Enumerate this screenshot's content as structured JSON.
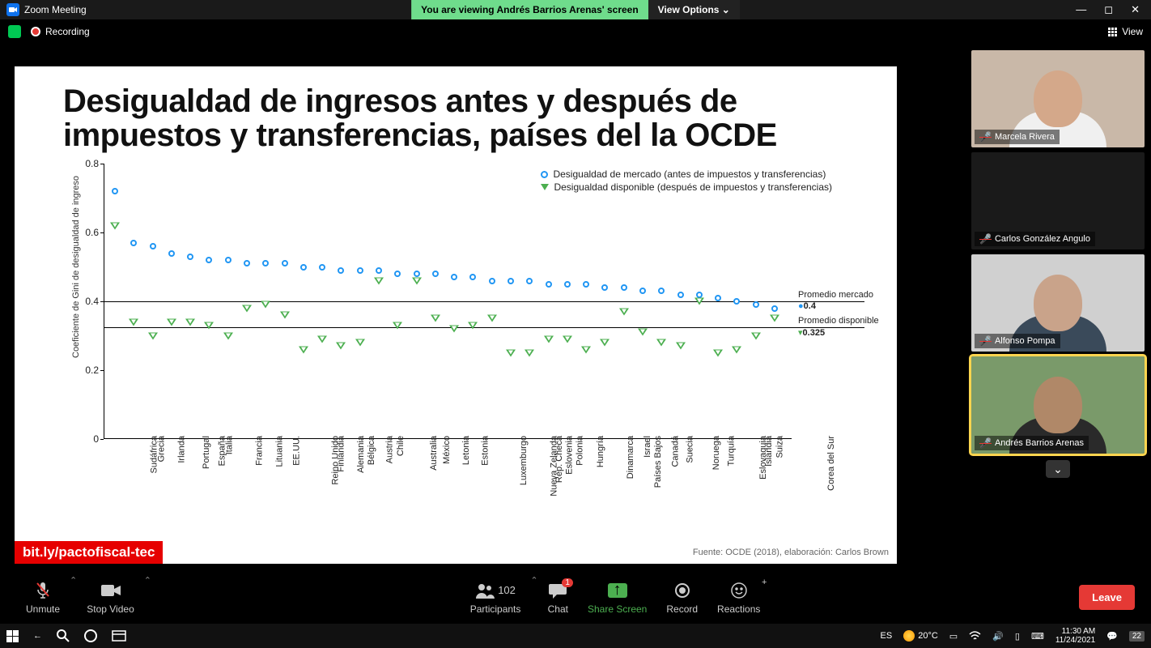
{
  "titlebar": {
    "app": "Zoom Meeting",
    "sharing_msg": "You are viewing Andrés Barrios Arenas' screen",
    "view_options": "View Options ⌄"
  },
  "statusbar": {
    "recording": "Recording",
    "view": "View"
  },
  "slide": {
    "title": "Desigualdad de ingresos antes y después de impuestos y transferencias, países del la OCDE",
    "ylabel": "Coeficiente de Gini de desigualdad de ingreso",
    "source": "Fuente: OCDE (2018), elaboración: Carlos Brown",
    "link": "bit.ly/pactofiscal-tec",
    "legend_market": "Desigualdad de mercado (antes de impuestos y transferencias)",
    "legend_disp": "Desigualdad disponible (después de impuestos y transferencias)",
    "avg_market_label": "Promedio mercado",
    "avg_market_val": "0.4",
    "avg_disp_label": "Promedio disponible",
    "avg_disp_val": "0.325",
    "chart": {
      "type": "scatter",
      "ylim": [
        0,
        0.8
      ],
      "yticks": [
        0,
        0.2,
        0.4,
        0.6,
        0.8
      ],
      "market_color": "#2196f3",
      "disp_color": "#4caf50",
      "avg_market": 0.4,
      "avg_disp": 0.325,
      "categories": [
        "Sudáfrica",
        "Grecia",
        "Irlanda",
        "Portugal",
        "España",
        "Italia",
        "Francia",
        "Lituania",
        "EE.UU.",
        "Reino Unido",
        "Finlandia",
        "Alemania",
        "Bélgica",
        "Austria",
        "Chile",
        "Australia",
        "México",
        "Letonia",
        "Estonia",
        "Luxemburgo",
        "Nueva Zelanda",
        "Rep. Checa",
        "Eslovenia",
        "Polonia",
        "Hungría",
        "Dinamarca",
        "Países Bajos",
        "Israel",
        "Canadá",
        "Suecia",
        "Noruega",
        "Turquía",
        "Eslovaquia",
        "Islandia",
        "Suiza",
        "Corea del Sur"
      ],
      "market": [
        0.72,
        0.57,
        0.56,
        0.54,
        0.53,
        0.52,
        0.52,
        0.51,
        0.51,
        0.51,
        0.5,
        0.5,
        0.49,
        0.49,
        0.49,
        0.48,
        0.48,
        0.48,
        0.47,
        0.47,
        0.46,
        0.46,
        0.46,
        0.45,
        0.45,
        0.45,
        0.44,
        0.44,
        0.43,
        0.43,
        0.42,
        0.42,
        0.41,
        0.4,
        0.39,
        0.38
      ],
      "disposable": [
        0.62,
        0.34,
        0.3,
        0.34,
        0.34,
        0.33,
        0.3,
        0.38,
        0.39,
        0.36,
        0.26,
        0.29,
        0.27,
        0.28,
        0.46,
        0.33,
        0.46,
        0.35,
        0.32,
        0.33,
        0.35,
        0.25,
        0.25,
        0.29,
        0.29,
        0.26,
        0.28,
        0.37,
        0.31,
        0.28,
        0.27,
        0.4,
        0.25,
        0.26,
        0.3,
        0.35
      ]
    }
  },
  "participants": [
    {
      "name": "Marcela Rivera",
      "muted": true,
      "bg": "#c9b8a8",
      "face": "#d4a88a",
      "body": "#f0f0f0"
    },
    {
      "name": "Carlos González Angulo",
      "muted": true,
      "video_off": true
    },
    {
      "name": "Alfonso Pompa",
      "muted": true,
      "bg": "#d0d0d0",
      "face": "#c9a38a",
      "body": "#3a4a5a"
    },
    {
      "name": "Andrés Barrios Arenas",
      "muted": true,
      "speaking": true,
      "bg": "#7a9a6a",
      "face": "#b08868",
      "body": "#2a2a2a"
    }
  ],
  "toolbar": {
    "unmute": "Unmute",
    "stop_video": "Stop Video",
    "participants": "Participants",
    "participants_count": "102",
    "chat": "Chat",
    "chat_badge": "1",
    "share": "Share Screen",
    "record": "Record",
    "reactions": "Reactions",
    "leave": "Leave"
  },
  "taskbar": {
    "lang": "ES",
    "temp": "20°C",
    "time": "11:30 AM",
    "date": "11/24/2021",
    "notif": "22"
  }
}
